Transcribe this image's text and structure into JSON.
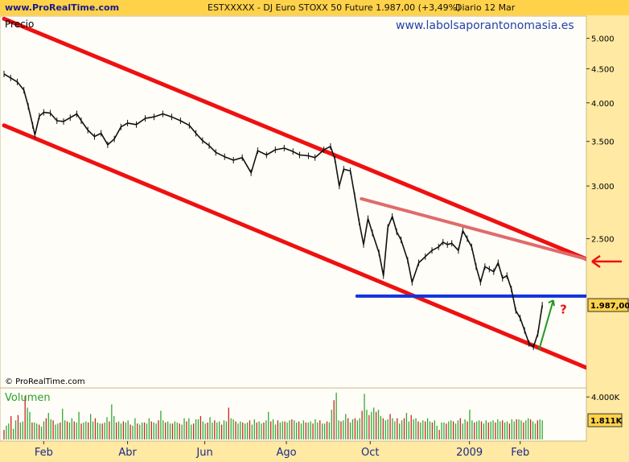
{
  "header": {
    "site": "www.ProRealTime.com",
    "title": "ESTXXXXX - DJ Euro STOXX 50 Future    1.987,00 (+3,49%)",
    "period": "Diario  12 Mar"
  },
  "watermark": "www.labolsaporantonomasia.es",
  "copyright": "© ProRealTime.com",
  "colors": {
    "background": "#ffe9a3",
    "topbar": "#ffd24a",
    "channel": "#ee1111",
    "triangle_line": "#e06b6b",
    "support_line": "#1133dd",
    "volume_up": "#31a831",
    "volume_down": "#cc2222",
    "up_arrow": "#229922",
    "question_mark": "#ee1111"
  },
  "chart_data": [
    {
      "type": "line",
      "title": "Precio",
      "scale": "log",
      "y_ticks": [
        {
          "v": 5000,
          "label": "5.000"
        },
        {
          "v": 4500,
          "label": "4.500"
        },
        {
          "v": 4000,
          "label": "4.000"
        },
        {
          "v": 3500,
          "label": "3.500"
        },
        {
          "v": 3000,
          "label": "3.000"
        },
        {
          "v": 2500,
          "label": "2.500"
        }
      ],
      "y_range": [
        1500,
        5400
      ],
      "x_range": [
        0,
        264
      ],
      "x_ticks": [
        {
          "v": 18,
          "label": "Feb"
        },
        {
          "v": 56,
          "label": "Abr"
        },
        {
          "v": 91,
          "label": "Jun"
        },
        {
          "v": 128,
          "label": "Ago"
        },
        {
          "v": 166,
          "label": "Oct"
        },
        {
          "v": 211,
          "label": "2009"
        },
        {
          "v": 234,
          "label": "Feb"
        }
      ],
      "last_value": 1987,
      "last_label": "1.987,00",
      "series": [
        {
          "values": [
            [
              0,
              4420
            ],
            [
              3,
              4360
            ],
            [
              6,
              4300
            ],
            [
              9,
              4180
            ],
            [
              11,
              3950
            ],
            [
              13,
              3700
            ],
            [
              14,
              3580
            ],
            [
              16,
              3820
            ],
            [
              18,
              3870
            ],
            [
              21,
              3860
            ],
            [
              24,
              3760
            ],
            [
              27,
              3750
            ],
            [
              30,
              3800
            ],
            [
              33,
              3850
            ],
            [
              35,
              3760
            ],
            [
              38,
              3640
            ],
            [
              41,
              3560
            ],
            [
              44,
              3600
            ],
            [
              47,
              3460
            ],
            [
              50,
              3530
            ],
            [
              53,
              3680
            ],
            [
              56,
              3730
            ],
            [
              60,
              3710
            ],
            [
              64,
              3790
            ],
            [
              68,
              3810
            ],
            [
              72,
              3850
            ],
            [
              76,
              3810
            ],
            [
              80,
              3760
            ],
            [
              84,
              3700
            ],
            [
              87,
              3600
            ],
            [
              90,
              3510
            ],
            [
              93,
              3450
            ],
            [
              96,
              3370
            ],
            [
              100,
              3320
            ],
            [
              104,
              3280
            ],
            [
              108,
              3310
            ],
            [
              112,
              3140
            ],
            [
              115,
              3390
            ],
            [
              119,
              3340
            ],
            [
              123,
              3400
            ],
            [
              127,
              3420
            ],
            [
              131,
              3380
            ],
            [
              134,
              3340
            ],
            [
              138,
              3330
            ],
            [
              141,
              3310
            ],
            [
              145,
              3400
            ],
            [
              148,
              3440
            ],
            [
              150,
              3290
            ],
            [
              152,
              3000
            ],
            [
              154,
              3180
            ],
            [
              157,
              3160
            ],
            [
              159,
              2900
            ],
            [
              161,
              2650
            ],
            [
              163,
              2450
            ],
            [
              165,
              2680
            ],
            [
              167,
              2550
            ],
            [
              170,
              2380
            ],
            [
              172,
              2200
            ],
            [
              174,
              2600
            ],
            [
              176,
              2700
            ],
            [
              178,
              2560
            ],
            [
              180,
              2490
            ],
            [
              183,
              2320
            ],
            [
              185,
              2150
            ],
            [
              188,
              2300
            ],
            [
              191,
              2350
            ],
            [
              194,
              2400
            ],
            [
              197,
              2430
            ],
            [
              199,
              2470
            ],
            [
              201,
              2450
            ],
            [
              203,
              2460
            ],
            [
              206,
              2400
            ],
            [
              208,
              2570
            ],
            [
              210,
              2500
            ],
            [
              212,
              2430
            ],
            [
              214,
              2270
            ],
            [
              216,
              2150
            ],
            [
              218,
              2270
            ],
            [
              220,
              2250
            ],
            [
              222,
              2230
            ],
            [
              224,
              2300
            ],
            [
              226,
              2180
            ],
            [
              228,
              2200
            ],
            [
              230,
              2100
            ],
            [
              232,
              1950
            ],
            [
              234,
              1900
            ],
            [
              236,
              1820
            ],
            [
              238,
              1740
            ],
            [
              240,
              1720
            ],
            [
              242,
              1800
            ],
            [
              244,
              1987
            ]
          ]
        }
      ],
      "lines": [
        {
          "name": "channel-upper",
          "from": [
            0,
            5350
          ],
          "to": [
            264,
            2330
          ]
        },
        {
          "name": "channel-lower",
          "from": [
            0,
            3700
          ],
          "to": [
            264,
            1600
          ]
        },
        {
          "name": "triangle-resistance",
          "from": [
            162,
            2870
          ],
          "to": [
            264,
            2330
          ]
        },
        {
          "name": "support",
          "from": [
            160,
            2050
          ],
          "to": [
            264,
            2050
          ]
        }
      ]
    },
    {
      "type": "bar",
      "title": "Volumen",
      "y_ticks": [
        {
          "v": 4000,
          "label": "4.000K"
        }
      ],
      "last_value": 1811,
      "last_label": "1.811K",
      "y_range": [
        0,
        4700
      ],
      "values": [
        900,
        1300,
        1500,
        2200,
        1000,
        1800,
        2300,
        1600,
        1700,
        4100,
        3000,
        2600,
        1600,
        1600,
        1500,
        1400,
        1200,
        1700,
        2000,
        2500,
        1900,
        1800,
        1400,
        1500,
        1600,
        2900,
        1800,
        1700,
        1600,
        2000,
        1700,
        1600,
        2600,
        1500,
        1600,
        1700,
        1600,
        2400,
        1700,
        2000,
        1600,
        1500,
        1500,
        1600,
        2100,
        1700,
        3300,
        2200,
        1600,
        1700,
        1500,
        1700,
        1600,
        1800,
        1400,
        1300,
        2000,
        1500,
        1400,
        1600,
        1600,
        1500,
        2000,
        1700,
        1600,
        1500,
        1800,
        2700,
        1800,
        1600,
        1700,
        1500,
        1500,
        1700,
        1600,
        1500,
        1400,
        2000,
        1700,
        2000,
        1400,
        1500,
        1900,
        1900,
        2200,
        1700,
        1500,
        1600,
        2100,
        1600,
        1800,
        1600,
        1700,
        1400,
        1800,
        1700,
        3000,
        2000,
        1900,
        1700,
        1500,
        1700,
        1600,
        1500,
        1600,
        1800,
        1400,
        1900,
        1600,
        1700,
        1500,
        1600,
        1800,
        2600,
        1700,
        1900,
        1400,
        1800,
        1600,
        1700,
        1700,
        1600,
        1800,
        1900,
        1800,
        1600,
        1700,
        1500,
        1800,
        1600,
        1600,
        1700,
        1500,
        1900,
        1600,
        1800,
        1500,
        1500,
        1700,
        1600,
        2800,
        3700,
        4400,
        1800,
        1700,
        1800,
        2400,
        2000,
        1600,
        1900,
        2000,
        1800,
        2000,
        2700,
        4300,
        2800,
        2300,
        2600,
        3000,
        2600,
        2800,
        2200,
        2000,
        1800,
        1900,
        2400,
        2000,
        1700,
        2000,
        1500,
        1800,
        2000,
        2500,
        1700,
        2300,
        1900,
        2000,
        1700,
        1600,
        1800,
        1700,
        2000,
        1700,
        1600,
        1800,
        1300,
        900,
        1600,
        1600,
        1500,
        1700,
        1800,
        1700,
        1500,
        1800,
        2000,
        1500,
        1900,
        1700,
        2800,
        1800,
        1600,
        1700,
        1800,
        1700,
        1500,
        1800,
        1600,
        1700,
        1800,
        1600,
        1900,
        1700,
        1800,
        1600,
        1700,
        1500,
        1900,
        1700,
        1900,
        1900,
        1800,
        1600,
        1800,
        2000,
        1900,
        1700,
        1500,
        1800,
        1900,
        1811
      ]
    }
  ]
}
